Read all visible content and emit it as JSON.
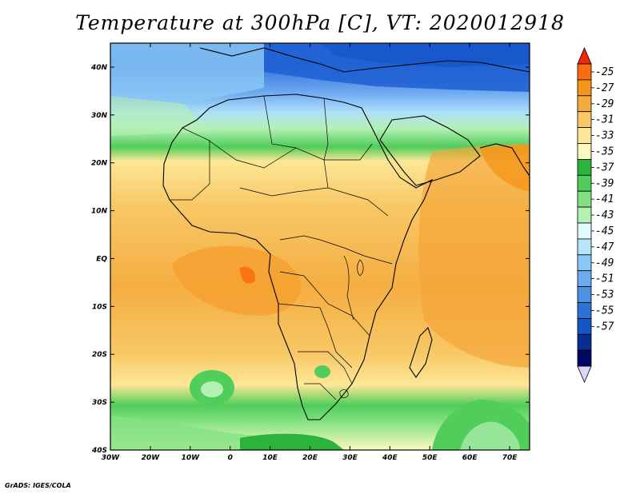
{
  "title": "Temperature at 300hPa [C], VT: 2020012918",
  "credit": "GrADS: IGES/COLA",
  "map": {
    "lat_labels": [
      "40N",
      "30N",
      "20N",
      "10N",
      "EQ",
      "10S",
      "20S",
      "30S",
      "40S"
    ],
    "lon_labels": [
      "30W",
      "20W",
      "10W",
      "0",
      "10E",
      "20E",
      "30E",
      "40E",
      "50E",
      "60E",
      "70E"
    ],
    "lon_range": [
      -30,
      75
    ],
    "lat_range": [
      -40,
      45
    ]
  },
  "colorbar": {
    "labels": [
      "-25",
      "-27",
      "-29",
      "-31",
      "-33",
      "-35",
      "-37",
      "-39",
      "-41",
      "-43",
      "-45",
      "-47",
      "-49",
      "-51",
      "-53",
      "-55",
      "-57"
    ],
    "colors": [
      "#f0280a",
      "#fa6e0f",
      "#f59619",
      "#f5ac3c",
      "#fac864",
      "#fde796",
      "#fdf8c0",
      "#2ab43c",
      "#50cd5a",
      "#82e182",
      "#b4f0b4",
      "#e1fafa",
      "#b4e6fa",
      "#8cc8f5",
      "#6eaaf0",
      "#4b91e6",
      "#2d73d7",
      "#1455c8",
      "#0a2d91",
      "#000a64"
    ],
    "top_arrow_color": "#f0280a",
    "bottom_arrow_color": "#ddd6f4"
  }
}
